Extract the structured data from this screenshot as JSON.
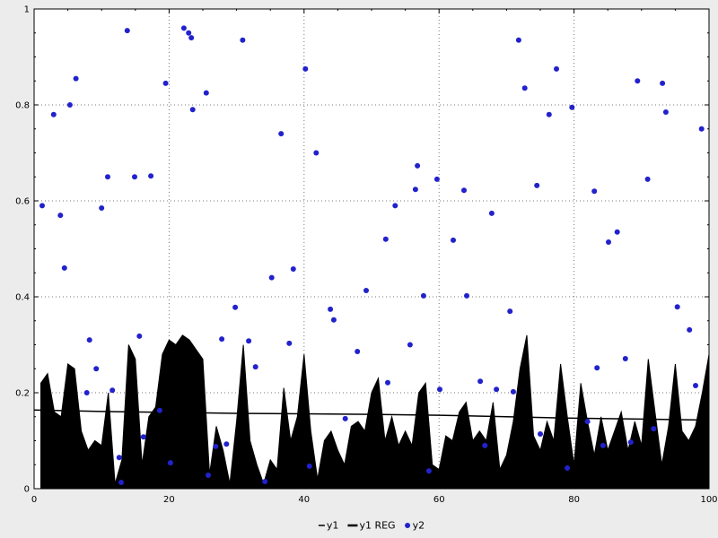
{
  "colors": {
    "background": "#ececec",
    "plot_background": "#ffffff",
    "grid": "#777777",
    "axis": "#000000",
    "area_fill": "#000000",
    "regression_line": "#000000",
    "scatter": "#2222cc",
    "label_text": "#000000"
  },
  "chart_data": {
    "type": "mixed",
    "title": "",
    "xlabel": "",
    "ylabel": "",
    "xlim": [
      0,
      100
    ],
    "ylim": [
      0,
      1
    ],
    "x_ticks": [
      0,
      20,
      40,
      60,
      80,
      100
    ],
    "x_tick_labels": [
      "0",
      "20",
      "40",
      "60",
      "80",
      "100"
    ],
    "y_ticks": [
      0,
      0.2,
      0.4,
      0.6,
      0.8,
      1
    ],
    "y_tick_labels": [
      "0",
      "0.2",
      "0.4",
      "0.6",
      "0.8",
      "1"
    ],
    "x_minor_step": 5,
    "y_minor_step": 0.05,
    "grid": true,
    "legend_position": "bottom-center",
    "legend": [
      {
        "label": "y1",
        "symbol": "line-short",
        "color": "#000000"
      },
      {
        "label": "y1 REG",
        "symbol": "line",
        "color": "#000000"
      },
      {
        "label": "y2",
        "symbol": "dot",
        "color": "#2222cc"
      }
    ],
    "series": [
      {
        "name": "y1",
        "type": "area",
        "color": "#000000",
        "x_start": 1,
        "x_step": 1,
        "values": [
          0.22,
          0.24,
          0.16,
          0.15,
          0.26,
          0.25,
          0.12,
          0.08,
          0.1,
          0.09,
          0.2,
          0.01,
          0.06,
          0.3,
          0.27,
          0.05,
          0.15,
          0.17,
          0.28,
          0.31,
          0.3,
          0.32,
          0.31,
          0.29,
          0.27,
          0.03,
          0.13,
          0.08,
          0.01,
          0.14,
          0.3,
          0.1,
          0.05,
          0.01,
          0.06,
          0.04,
          0.21,
          0.1,
          0.15,
          0.28,
          0.12,
          0.02,
          0.1,
          0.12,
          0.08,
          0.05,
          0.13,
          0.14,
          0.12,
          0.2,
          0.23,
          0.1,
          0.15,
          0.09,
          0.12,
          0.09,
          0.2,
          0.22,
          0.05,
          0.04,
          0.11,
          0.1,
          0.16,
          0.18,
          0.1,
          0.12,
          0.1,
          0.18,
          0.04,
          0.07,
          0.14,
          0.25,
          0.32,
          0.11,
          0.08,
          0.14,
          0.1,
          0.26,
          0.15,
          0.05,
          0.22,
          0.14,
          0.07,
          0.15,
          0.08,
          0.12,
          0.16,
          0.08,
          0.14,
          0.09,
          0.27,
          0.16,
          0.05,
          0.13,
          0.26,
          0.12,
          0.1,
          0.13,
          0.2,
          0.28
        ]
      },
      {
        "name": "y1 REG",
        "type": "line",
        "color": "#000000",
        "x": [
          0,
          10,
          20,
          30,
          40,
          50,
          60,
          70,
          80,
          90,
          100
        ],
        "values": [
          0.164,
          0.161,
          0.159,
          0.157,
          0.156,
          0.155,
          0.153,
          0.15,
          0.147,
          0.145,
          0.143
        ]
      },
      {
        "name": "y2",
        "type": "scatter",
        "color": "#2222cc",
        "points": [
          [
            1.2,
            0.59
          ],
          [
            2.9,
            0.78
          ],
          [
            3.9,
            0.57
          ],
          [
            4.5,
            0.46
          ],
          [
            5.3,
            0.8
          ],
          [
            6.2,
            0.855
          ],
          [
            7.8,
            0.2
          ],
          [
            8.2,
            0.31
          ],
          [
            9.2,
            0.25
          ],
          [
            10.0,
            0.585
          ],
          [
            10.9,
            0.65
          ],
          [
            11.6,
            0.205
          ],
          [
            12.6,
            0.065
          ],
          [
            12.9,
            0.013
          ],
          [
            13.8,
            0.955
          ],
          [
            14.9,
            0.65
          ],
          [
            15.6,
            0.318
          ],
          [
            16.2,
            0.108
          ],
          [
            17.3,
            0.652
          ],
          [
            18.6,
            0.163
          ],
          [
            19.5,
            0.845
          ],
          [
            20.2,
            0.054
          ],
          [
            22.2,
            0.96
          ],
          [
            22.9,
            0.95
          ],
          [
            23.3,
            0.94
          ],
          [
            23.5,
            0.79
          ],
          [
            25.5,
            0.825
          ],
          [
            25.8,
            0.028
          ],
          [
            26.9,
            0.088
          ],
          [
            27.8,
            0.312
          ],
          [
            28.5,
            0.093
          ],
          [
            29.8,
            0.378
          ],
          [
            30.9,
            0.935
          ],
          [
            31.8,
            0.308
          ],
          [
            32.8,
            0.254
          ],
          [
            34.2,
            0.015
          ],
          [
            35.2,
            0.44
          ],
          [
            36.6,
            0.74
          ],
          [
            37.8,
            0.303
          ],
          [
            38.4,
            0.458
          ],
          [
            40.2,
            0.875
          ],
          [
            40.8,
            0.047
          ],
          [
            41.8,
            0.7
          ],
          [
            43.9,
            0.374
          ],
          [
            44.4,
            0.352
          ],
          [
            46.1,
            0.146
          ],
          [
            47.9,
            0.286
          ],
          [
            49.2,
            0.413
          ],
          [
            52.1,
            0.52
          ],
          [
            52.4,
            0.221
          ],
          [
            53.5,
            0.59
          ],
          [
            55.7,
            0.3
          ],
          [
            56.5,
            0.624
          ],
          [
            56.8,
            0.673
          ],
          [
            57.7,
            0.402
          ],
          [
            58.5,
            0.037
          ],
          [
            59.7,
            0.645
          ],
          [
            60.1,
            0.207
          ],
          [
            62.1,
            0.518
          ],
          [
            63.7,
            0.622
          ],
          [
            64.1,
            0.402
          ],
          [
            66.1,
            0.224
          ],
          [
            66.8,
            0.09
          ],
          [
            67.8,
            0.574
          ],
          [
            68.5,
            0.207
          ],
          [
            70.5,
            0.37
          ],
          [
            71.0,
            0.202
          ],
          [
            71.8,
            0.935
          ],
          [
            72.7,
            0.835
          ],
          [
            74.5,
            0.632
          ],
          [
            75.0,
            0.114
          ],
          [
            76.3,
            0.78
          ],
          [
            77.4,
            0.875
          ],
          [
            79.0,
            0.043
          ],
          [
            79.7,
            0.795
          ],
          [
            82.0,
            0.14
          ],
          [
            83.0,
            0.62
          ],
          [
            83.4,
            0.252
          ],
          [
            84.3,
            0.09
          ],
          [
            85.1,
            0.514
          ],
          [
            86.4,
            0.535
          ],
          [
            87.6,
            0.271
          ],
          [
            88.4,
            0.097
          ],
          [
            89.4,
            0.85
          ],
          [
            90.9,
            0.645
          ],
          [
            91.8,
            0.125
          ],
          [
            93.1,
            0.845
          ],
          [
            93.6,
            0.785
          ],
          [
            95.3,
            0.379
          ],
          [
            97.1,
            0.331
          ],
          [
            98.0,
            0.215
          ],
          [
            98.9,
            0.75
          ]
        ]
      }
    ]
  }
}
